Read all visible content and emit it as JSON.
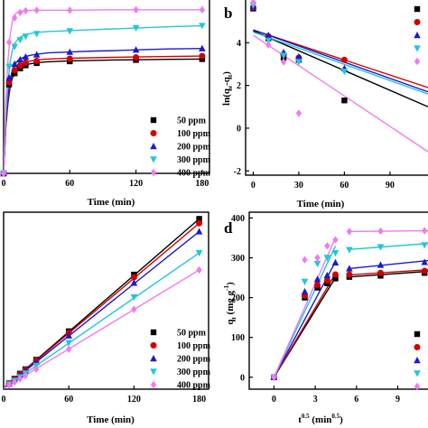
{
  "colors": {
    "s50": "#000000",
    "s100": "#d40000",
    "s200": "#1a1ad0",
    "s300": "#1ec8d8",
    "s400": "#f07af0"
  },
  "chart_data": [
    {
      "id": "a",
      "type": "scatter",
      "panel_letter": "",
      "xlabel": "Time (min)",
      "ylabel": "",
      "xlim": [
        0,
        185
      ],
      "ylim": [
        0,
        390
      ],
      "xticks": [
        0,
        60,
        120,
        180
      ],
      "xtick_labels": [
        "0",
        "60",
        "120",
        "180"
      ],
      "yticks": [],
      "ytick_labels": [],
      "legend": {
        "placement": "bottom-right",
        "entries": [
          "50 ppm",
          "100 ppm",
          "200 ppm",
          "300 ppm",
          "400 ppm"
        ]
      },
      "series": [
        {
          "name": "50 ppm",
          "marker": "square",
          "color_key": "s50",
          "x": [
            0,
            5,
            10,
            15,
            20,
            30,
            60,
            120,
            180
          ],
          "y": [
            0,
            200,
            225,
            236,
            243,
            248,
            252,
            255,
            257
          ],
          "fit_x": [
            0,
            2,
            4,
            6,
            8,
            10,
            13,
            16,
            20,
            25,
            30,
            40,
            50,
            60,
            80,
            100,
            120,
            150,
            180
          ],
          "fit_y": [
            0,
            105,
            160,
            196,
            215,
            226,
            235,
            240,
            244,
            247,
            249,
            251,
            252,
            253,
            254,
            255,
            255.5,
            256.5,
            257
          ]
        },
        {
          "name": "100 ppm",
          "marker": "circle",
          "color_key": "s100",
          "x": [
            0,
            5,
            10,
            15,
            20,
            30,
            60,
            120,
            180
          ],
          "y": [
            0,
            205,
            232,
            243,
            249,
            253,
            258,
            261,
            264
          ],
          "fit_x": [
            0,
            2,
            4,
            6,
            8,
            10,
            13,
            16,
            20,
            25,
            30,
            40,
            50,
            60,
            80,
            100,
            120,
            150,
            180
          ],
          "fit_y": [
            0,
            108,
            165,
            202,
            222,
            233,
            241,
            246,
            250,
            253,
            255,
            257,
            258,
            259,
            260,
            261,
            262,
            263,
            264
          ]
        },
        {
          "name": "200 ppm",
          "marker": "triangle-up",
          "color_key": "s200",
          "x": [
            0,
            5,
            10,
            15,
            20,
            30,
            60,
            120,
            180
          ],
          "y": [
            0,
            215,
            246,
            256,
            262,
            267,
            273,
            278,
            281
          ],
          "fit_x": [
            0,
            2,
            4,
            6,
            8,
            10,
            13,
            16,
            20,
            25,
            30,
            40,
            50,
            60,
            80,
            100,
            120,
            150,
            180
          ],
          "fit_y": [
            0,
            115,
            175,
            212,
            233,
            245,
            254,
            259,
            263,
            266,
            268,
            271,
            272,
            273,
            275,
            276,
            278,
            280,
            281
          ]
        },
        {
          "name": "300 ppm",
          "marker": "triangle-down",
          "color_key": "s300",
          "x": [
            0,
            5,
            10,
            15,
            20,
            30,
            60,
            120,
            180
          ],
          "y": [
            0,
            240,
            285,
            300,
            308,
            314,
            320,
            327,
            332
          ],
          "fit_x": [
            0,
            2,
            4,
            6,
            8,
            10,
            13,
            16,
            20,
            25,
            30,
            40,
            50,
            60,
            80,
            100,
            120,
            150,
            180
          ],
          "fit_y": [
            0,
            130,
            205,
            252,
            278,
            292,
            302,
            308,
            312,
            315,
            317,
            319,
            320,
            321,
            323,
            325,
            327,
            330,
            332
          ]
        },
        {
          "name": "400 ppm",
          "marker": "diamond",
          "color_key": "s400",
          "x": [
            0,
            5,
            10,
            15,
            20,
            30,
            60,
            120,
            180
          ],
          "y": [
            0,
            295,
            350,
            362,
            366,
            367,
            367,
            368,
            368
          ],
          "fit_x": [
            0,
            2,
            4,
            6,
            8,
            10,
            13,
            16,
            20,
            25,
            30,
            40,
            50,
            60,
            80,
            100,
            120,
            150,
            180
          ],
          "fit_y": [
            0,
            160,
            255,
            313,
            343,
            357,
            363,
            365,
            366,
            367,
            367,
            367,
            367,
            367,
            367.5,
            368,
            368,
            368,
            368
          ]
        }
      ]
    },
    {
      "id": "b",
      "type": "scatter",
      "panel_letter": "b",
      "xlabel": "Time (min)",
      "ylabel": "ln(q_e-q_t)",
      "xlim": [
        -5,
        115
      ],
      "ylim": [
        -2.2,
        6
      ],
      "xticks": [
        0,
        30,
        60,
        90
      ],
      "xtick_labels": [
        "0",
        "30",
        "60",
        "90"
      ],
      "yticks": [
        -2,
        0,
        2,
        4
      ],
      "ytick_labels": [
        "-2",
        "0",
        "2",
        "4"
      ],
      "legend": {
        "placement": "top-right",
        "entries": [
          "",
          "",
          "",
          "",
          ""
        ]
      },
      "series": [
        {
          "name": "50 ppm",
          "marker": "square",
          "color_key": "s50",
          "x": [
            0,
            10,
            20,
            30,
            60
          ],
          "y": [
            5.6,
            4.2,
            3.3,
            3.2,
            1.3
          ],
          "fit_x": [
            0,
            115
          ],
          "fit_y": [
            4.55,
            1.0
          ]
        },
        {
          "name": "100 ppm",
          "marker": "circle",
          "color_key": "s100",
          "x": [
            0,
            10,
            20,
            30,
            60
          ],
          "y": [
            5.65,
            4.3,
            3.45,
            3.3,
            3.2
          ],
          "fit_x": [
            0,
            115
          ],
          "fit_y": [
            4.6,
            1.9
          ]
        },
        {
          "name": "200 ppm",
          "marker": "triangle-up",
          "color_key": "s200",
          "x": [
            0,
            10,
            20,
            30,
            60
          ],
          "y": [
            5.7,
            4.35,
            3.55,
            3.35,
            2.8
          ],
          "fit_x": [
            0,
            115
          ],
          "fit_y": [
            4.6,
            1.7
          ]
        },
        {
          "name": "300 ppm",
          "marker": "triangle-down",
          "color_key": "s300",
          "x": [
            0,
            10,
            20,
            30,
            60
          ],
          "y": [
            5.75,
            4.1,
            3.4,
            3.1,
            2.65
          ],
          "fit_x": [
            0,
            115
          ],
          "fit_y": [
            4.5,
            1.6
          ]
        },
        {
          "name": "400 ppm",
          "marker": "diamond",
          "color_key": "s400",
          "x": [
            0,
            10,
            20,
            30
          ],
          "y": [
            5.9,
            3.9,
            3.1,
            0.7
          ],
          "fit_x": [
            0,
            115
          ],
          "fit_y": [
            4.35,
            -1.1
          ]
        }
      ]
    },
    {
      "id": "c",
      "type": "scatter",
      "panel_letter": "",
      "xlabel": "Time (min)",
      "ylabel": "",
      "xlim": [
        0,
        187
      ],
      "ylim": [
        0,
        0.72
      ],
      "xticks": [
        0,
        60,
        120,
        180
      ],
      "xtick_labels": [
        "0",
        "60",
        "120",
        "180"
      ],
      "yticks": [],
      "ytick_labels": [],
      "legend": {
        "placement": "bottom-right",
        "entries": [
          "50 ppm",
          "100 ppm",
          "200 ppm",
          "300 ppm",
          "400 ppm"
        ]
      },
      "series": [
        {
          "name": "50 ppm",
          "marker": "square",
          "color_key": "s50",
          "x": [
            5,
            10,
            15,
            20,
            30,
            60,
            120,
            180
          ],
          "y": [
            0.024,
            0.043,
            0.064,
            0.082,
            0.121,
            0.238,
            0.471,
            0.7
          ],
          "fit_x": [
            0,
            180
          ],
          "fit_y": [
            0.004,
            0.7
          ]
        },
        {
          "name": "100 ppm",
          "marker": "circle",
          "color_key": "s100",
          "x": [
            5,
            10,
            15,
            20,
            30,
            60,
            120,
            180
          ],
          "y": [
            0.023,
            0.042,
            0.062,
            0.08,
            0.118,
            0.232,
            0.46,
            0.682
          ],
          "fit_x": [
            0,
            180
          ],
          "fit_y": [
            0.004,
            0.682
          ]
        },
        {
          "name": "200 ppm",
          "marker": "triangle-up",
          "color_key": "s200",
          "x": [
            5,
            10,
            15,
            20,
            30,
            60,
            120,
            180
          ],
          "y": [
            0.022,
            0.04,
            0.059,
            0.076,
            0.112,
            0.22,
            0.437,
            0.648
          ],
          "fit_x": [
            0,
            180
          ],
          "fit_y": [
            0.004,
            0.648
          ]
        },
        {
          "name": "300 ppm",
          "marker": "triangle-down",
          "color_key": "s300",
          "x": [
            5,
            10,
            15,
            20,
            30,
            60,
            120,
            180
          ],
          "y": [
            0.02,
            0.035,
            0.05,
            0.065,
            0.096,
            0.19,
            0.378,
            0.56
          ],
          "fit_x": [
            0,
            180
          ],
          "fit_y": [
            0.004,
            0.56
          ]
        },
        {
          "name": "400 ppm",
          "marker": "diamond",
          "color_key": "s400",
          "x": [
            5,
            10,
            15,
            20,
            30,
            60,
            120,
            180
          ],
          "y": [
            0.017,
            0.029,
            0.042,
            0.055,
            0.082,
            0.164,
            0.328,
            0.49
          ],
          "fit_x": [
            0,
            180
          ],
          "fit_y": [
            0.003,
            0.49
          ]
        }
      ]
    },
    {
      "id": "d",
      "type": "scatter",
      "panel_letter": "d",
      "xlabel": "t^0.5 (min^0.5)",
      "ylabel": "q_t (mg g^-1)",
      "xlim": [
        -1.8,
        11.2
      ],
      "ylim": [
        -30,
        410
      ],
      "xticks": [
        0,
        3,
        6,
        9
      ],
      "xtick_labels": [
        "0",
        "3",
        "6",
        "9"
      ],
      "yticks": [
        0,
        100,
        200,
        300,
        400
      ],
      "ytick_labels": [
        "0",
        "100",
        "200",
        "300",
        "400"
      ],
      "legend": {
        "placement": "bottom-right",
        "entries": [
          "",
          "",
          "",
          "",
          ""
        ]
      },
      "series": [
        {
          "name": "50 ppm",
          "marker": "square",
          "color_key": "s50",
          "x": [
            0,
            2.24,
            3.16,
            3.87,
            4.47,
            5.48,
            7.75,
            10.95
          ],
          "y": [
            0,
            200,
            225,
            236,
            248,
            252,
            255,
            262
          ],
          "fit_x": [
            0,
            4.47
          ],
          "fit_y": [
            0,
            250
          ],
          "fit2_x": [
            5.48,
            11.2
          ],
          "fit2_y": [
            252,
            266
          ]
        },
        {
          "name": "100 ppm",
          "marker": "circle",
          "color_key": "s100",
          "x": [
            0,
            2.24,
            3.16,
            3.87,
            4.47,
            5.48,
            7.75,
            10.95
          ],
          "y": [
            0,
            205,
            232,
            243,
            258,
            258,
            262,
            267
          ],
          "fit_x": [
            0,
            4.47
          ],
          "fit_y": [
            0,
            260
          ],
          "fit2_x": [
            5.48,
            11.2
          ],
          "fit2_y": [
            257,
            270
          ]
        },
        {
          "name": "200 ppm",
          "marker": "triangle-up",
          "color_key": "s200",
          "x": [
            0,
            2.24,
            3.16,
            3.87,
            4.47,
            5.48,
            7.75,
            10.95
          ],
          "y": [
            0,
            215,
            246,
            256,
            288,
            273,
            282,
            289
          ],
          "fit_x": [
            0,
            4.47
          ],
          "fit_y": [
            0,
            290
          ],
          "fit2_x": [
            5.48,
            11.2
          ],
          "fit2_y": [
            273,
            293
          ]
        },
        {
          "name": "300 ppm",
          "marker": "triangle-down",
          "color_key": "s300",
          "x": [
            0,
            2.24,
            3.16,
            3.87,
            4.47,
            5.48,
            7.75,
            10.95
          ],
          "y": [
            0,
            240,
            285,
            300,
            312,
            320,
            327,
            332
          ],
          "fit_x": [
            0,
            4.47
          ],
          "fit_y": [
            0,
            330
          ],
          "fit2_x": [
            5.48,
            11.2
          ],
          "fit2_y": [
            321,
            336
          ]
        },
        {
          "name": "400 ppm",
          "marker": "diamond",
          "color_key": "s400",
          "x": [
            0,
            2.24,
            3.16,
            3.87,
            4.47,
            5.48,
            7.75,
            10.95
          ],
          "y": [
            0,
            295,
            300,
            330,
            345,
            366,
            367,
            368
          ],
          "fit_x": [
            0,
            4.47
          ],
          "fit_y": [
            0,
            350
          ],
          "fit2_x": [
            5.48,
            11.2
          ],
          "fit2_y": [
            366,
            368
          ]
        }
      ]
    }
  ]
}
